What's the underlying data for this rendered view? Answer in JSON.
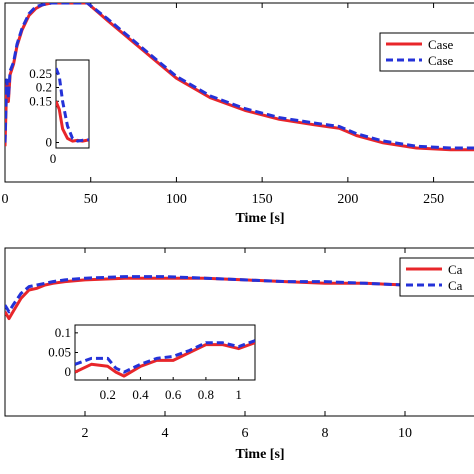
{
  "chart_data": [
    {
      "type": "line",
      "xlabel": "Time [s]",
      "xlim": [
        0,
        280
      ],
      "ylim": [
        0,
        1
      ],
      "x_ticks": [
        "0",
        "50",
        "100",
        "150",
        "200",
        "250"
      ],
      "x_tick_values": [
        0,
        50,
        100,
        150,
        200,
        250
      ],
      "legend": {
        "position": "top-right",
        "entries": [
          "Case",
          "Case"
        ]
      },
      "series": [
        {
          "color": "#e8262a",
          "style": "solid",
          "x": [
            0,
            1,
            2,
            3,
            5,
            7,
            10,
            14,
            18,
            22,
            27,
            48,
            60,
            80,
            100,
            120,
            140,
            160,
            180,
            195,
            200,
            205,
            220,
            240,
            260,
            280
          ],
          "y": [
            0.2,
            0.55,
            0.45,
            0.6,
            0.66,
            0.76,
            0.85,
            0.93,
            0.97,
            0.99,
            1.0,
            1.0,
            0.9,
            0.74,
            0.58,
            0.47,
            0.4,
            0.35,
            0.32,
            0.3,
            0.28,
            0.26,
            0.22,
            0.19,
            0.18,
            0.18
          ]
        },
        {
          "color": "#2432d8",
          "style": "dashed",
          "x": [
            0,
            1,
            2,
            3,
            5,
            7,
            10,
            14,
            18,
            22,
            27,
            48,
            60,
            80,
            100,
            120,
            140,
            160,
            180,
            195,
            200,
            205,
            220,
            240,
            260,
            280
          ],
          "y": [
            0.22,
            0.57,
            0.47,
            0.62,
            0.67,
            0.77,
            0.86,
            0.94,
            0.98,
            0.99,
            1.0,
            1.0,
            0.91,
            0.75,
            0.59,
            0.48,
            0.41,
            0.36,
            0.33,
            0.31,
            0.29,
            0.27,
            0.23,
            0.2,
            0.19,
            0.19
          ]
        }
      ],
      "inset": {
        "yticks": [
          "0.25",
          "0.2",
          "0.15",
          "0"
        ],
        "ytick_values": [
          0.25,
          0.2,
          0.15,
          0
        ],
        "ylim": [
          -0.02,
          0.3
        ],
        "xlim": [
          0,
          1
        ],
        "series": [
          {
            "color": "#e8262a",
            "style": "solid",
            "x": [
              0,
              0.1,
              0.2,
              0.35,
              0.5,
              0.65,
              0.8,
              1
            ],
            "y": [
              0.15,
              0.12,
              0.05,
              0.015,
              0.005,
              0.008,
              0.005,
              0.01
            ]
          },
          {
            "color": "#2432d8",
            "style": "dashed",
            "x": [
              0,
              0.1,
              0.2,
              0.35,
              0.5,
              0.65,
              0.8,
              1
            ],
            "y": [
              0.27,
              0.24,
              0.15,
              0.06,
              0.015,
              0.005,
              0.008,
              0.01
            ]
          }
        ]
      }
    },
    {
      "type": "line",
      "xlabel": "Time [s]",
      "xlim": [
        0,
        12
      ],
      "ylim": [
        0,
        1
      ],
      "x_ticks": [
        "2",
        "4",
        "6",
        "8",
        "10"
      ],
      "x_tick_values": [
        2,
        4,
        6,
        8,
        10
      ],
      "legend": {
        "position": "top-right",
        "entries": [
          "Ca",
          "Ca"
        ]
      },
      "series": [
        {
          "color": "#e8262a",
          "style": "solid",
          "x": [
            0,
            0.1,
            0.2,
            0.4,
            0.6,
            0.8,
            1.0,
            1.2,
            1.5,
            2,
            3,
            4,
            5,
            6,
            7,
            8,
            9,
            10,
            11,
            12
          ],
          "y": [
            0.62,
            0.58,
            0.62,
            0.7,
            0.75,
            0.76,
            0.78,
            0.79,
            0.8,
            0.81,
            0.82,
            0.82,
            0.82,
            0.81,
            0.8,
            0.79,
            0.79,
            0.78,
            0.77,
            0.77
          ]
        },
        {
          "color": "#2432d8",
          "style": "dashed",
          "x": [
            0,
            0.1,
            0.2,
            0.4,
            0.6,
            0.8,
            1.0,
            1.2,
            1.5,
            2,
            3,
            4,
            5,
            6,
            7,
            8,
            9,
            10,
            11,
            12
          ],
          "y": [
            0.66,
            0.62,
            0.66,
            0.73,
            0.77,
            0.78,
            0.79,
            0.8,
            0.81,
            0.82,
            0.83,
            0.83,
            0.82,
            0.81,
            0.8,
            0.8,
            0.79,
            0.78,
            0.78,
            0.77
          ]
        }
      ],
      "inset": {
        "xticks": [
          "0.2",
          "0.4",
          "0.6",
          "0.8",
          "1"
        ],
        "xtick_values": [
          0.2,
          0.4,
          0.6,
          0.8,
          1.0
        ],
        "yticks": [
          "0.1",
          "0.05",
          "0"
        ],
        "ytick_values": [
          0.1,
          0.05,
          0
        ],
        "xlim": [
          0,
          1.1
        ],
        "ylim": [
          -0.02,
          0.12
        ],
        "series": [
          {
            "color": "#e8262a",
            "style": "solid",
            "x": [
              0,
              0.1,
              0.2,
              0.25,
              0.3,
              0.4,
              0.5,
              0.6,
              0.7,
              0.8,
              0.9,
              1.0,
              1.1
            ],
            "y": [
              0.0,
              0.02,
              0.015,
              0.0,
              -0.01,
              0.015,
              0.03,
              0.03,
              0.05,
              0.07,
              0.07,
              0.06,
              0.075
            ]
          },
          {
            "color": "#2432d8",
            "style": "dashed",
            "x": [
              0,
              0.1,
              0.2,
              0.25,
              0.3,
              0.4,
              0.5,
              0.6,
              0.7,
              0.8,
              0.9,
              1.0,
              1.1
            ],
            "y": [
              0.02,
              0.035,
              0.035,
              0.01,
              0.0,
              0.02,
              0.035,
              0.04,
              0.055,
              0.075,
              0.075,
              0.065,
              0.08
            ]
          }
        ]
      }
    }
  ]
}
